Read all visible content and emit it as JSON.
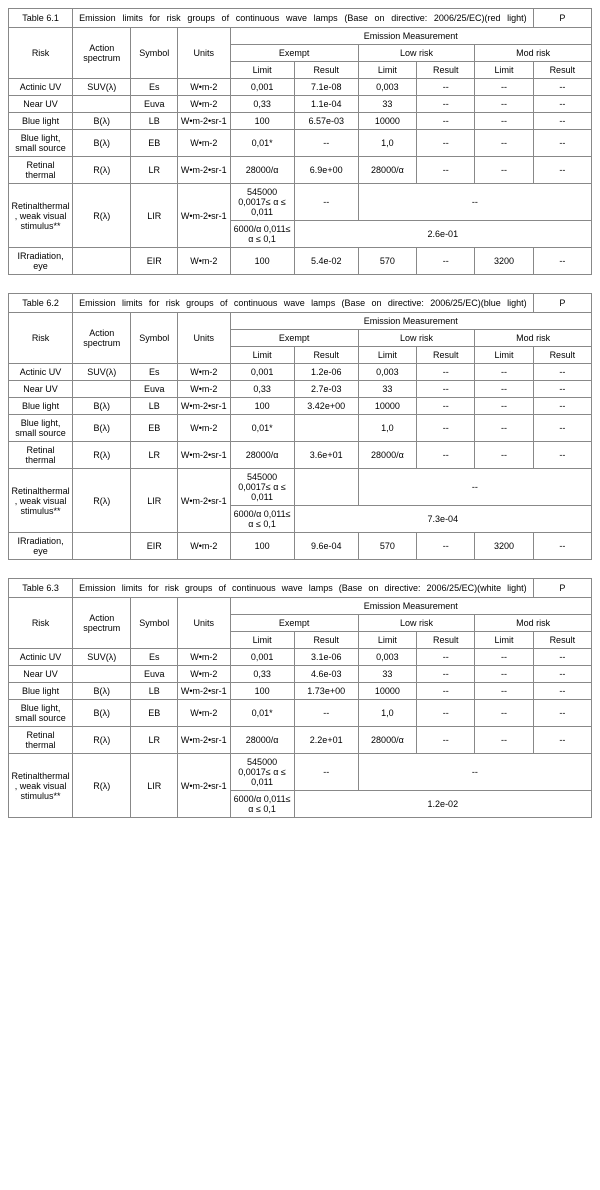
{
  "tables": [
    {
      "id": "Table 6.1",
      "title": "Emission limits for risk groups of continuous wave lamps (Base on directive: 2006/25/EC)(red light)",
      "p": "P",
      "header": {
        "risk": "Risk",
        "action_spectrum": "Action spectrum",
        "symbol": "Symbol",
        "units": "Units",
        "emission_measurement": "Emission Measurement",
        "exempt": "Exempt",
        "low_risk": "Low risk",
        "mod_risk": "Mod risk",
        "limit": "Limit",
        "result": "Result"
      },
      "rows": [
        {
          "risk": "Actinic UV",
          "spec": "SUV(λ)",
          "sym": "Es",
          "units": "W•m-2",
          "ex_l": "0,001",
          "ex_r": "7.1e-08",
          "lo_l": "0,003",
          "lo_r": "--",
          "mo_l": "--",
          "mo_r": "--"
        },
        {
          "risk": "Near UV",
          "spec": "",
          "sym": "Euva",
          "units": "W•m-2",
          "ex_l": "0,33",
          "ex_r": "1.1e-04",
          "lo_l": "33",
          "lo_r": "--",
          "mo_l": "--",
          "mo_r": "--"
        },
        {
          "risk": "Blue light",
          "spec": "B(λ)",
          "sym": "LB",
          "units": "W•m-2•sr-1",
          "ex_l": "100",
          "ex_r": "6.57e-03",
          "lo_l": "10000",
          "lo_r": "--",
          "mo_l": "--",
          "mo_r": "--"
        },
        {
          "risk": "Blue light, small source",
          "spec": "B(λ)",
          "sym": "EB",
          "units": "W•m-2",
          "ex_l": "0,01*",
          "ex_r": "--",
          "lo_l": "1,0",
          "lo_r": "--",
          "mo_l": "--",
          "mo_r": "--"
        },
        {
          "risk": "Retinal thermal",
          "spec": "R(λ)",
          "sym": "LR",
          "units": "W•m-2•sr-1",
          "ex_l": "28000/α",
          "ex_r": "6.9e+00",
          "lo_l": "28000/α",
          "lo_r": "--",
          "mo_l": "--",
          "mo_r": "--"
        }
      ],
      "retinal_weak": {
        "risk": "Retinalthermal, weak visual stimulus**",
        "spec": "R(λ)",
        "sym": "LIR",
        "units": "W•m-2•sr-1",
        "line1_limit": "545000 0,0017≤ α ≤ 0,011",
        "line1_result": "--",
        "line1_rest": "--",
        "line2_limit": "6000/α 0,011≤ α ≤ 0,1",
        "line2_rest": "2.6e-01"
      },
      "ir_row": {
        "risk": "IRradiation, eye",
        "spec": "",
        "sym": "EIR",
        "units": "W•m-2",
        "ex_l": "100",
        "ex_r": "5.4e-02",
        "lo_l": "570",
        "lo_r": "--",
        "mo_l": "3200",
        "mo_r": "--"
      }
    },
    {
      "id": "Table 6.2",
      "title": "Emission limits for risk groups of continuous wave lamps (Base on directive: 2006/25/EC)(blue light)",
      "p": "P",
      "header": {
        "risk": "Risk",
        "action_spectrum": "Action spectrum",
        "symbol": "Symbol",
        "units": "Units",
        "emission_measurement": "Emission Measurement",
        "exempt": "Exempt",
        "low_risk": "Low risk",
        "mod_risk": "Mod risk",
        "limit": "Limit",
        "result": "Result"
      },
      "rows": [
        {
          "risk": "Actinic UV",
          "spec": "SUV(λ)",
          "sym": "Es",
          "units": "W•m-2",
          "ex_l": "0,001",
          "ex_r": "1.2e-06",
          "lo_l": "0,003",
          "lo_r": "--",
          "mo_l": "--",
          "mo_r": "--"
        },
        {
          "risk": "Near UV",
          "spec": "",
          "sym": "Euva",
          "units": "W•m-2",
          "ex_l": "0,33",
          "ex_r": "2.7e-03",
          "lo_l": "33",
          "lo_r": "--",
          "mo_l": "--",
          "mo_r": "--"
        },
        {
          "risk": "Blue light",
          "spec": "B(λ)",
          "sym": "LB",
          "units": "W•m-2•sr-1",
          "ex_l": "100",
          "ex_r": "3.42e+00",
          "lo_l": "10000",
          "lo_r": "--",
          "mo_l": "--",
          "mo_r": "--"
        },
        {
          "risk": "Blue light, small source",
          "spec": "B(λ)",
          "sym": "EB",
          "units": "W•m-2",
          "ex_l": "0,01*",
          "ex_r": "",
          "lo_l": "1,0",
          "lo_r": "--",
          "mo_l": "--",
          "mo_r": "--"
        },
        {
          "risk": "Retinal thermal",
          "spec": "R(λ)",
          "sym": "LR",
          "units": "W•m-2•sr-1",
          "ex_l": "28000/α",
          "ex_r": "3.6e+01",
          "lo_l": "28000/α",
          "lo_r": "--",
          "mo_l": "--",
          "mo_r": "--"
        }
      ],
      "retinal_weak": {
        "risk": "Retinalthermal, weak visual stimulus**",
        "spec": "R(λ)",
        "sym": "LIR",
        "units": "W•m-2•sr-1",
        "line1_limit": "545000 0,0017≤ α ≤ 0,011",
        "line1_result": "",
        "line1_rest": "--",
        "line2_limit": "6000/α 0,011≤ α ≤ 0,1",
        "line2_rest": "7.3e-04"
      },
      "ir_row": {
        "risk": "IRradiation, eye",
        "spec": "",
        "sym": "EIR",
        "units": "W•m-2",
        "ex_l": "100",
        "ex_r": "9.6e-04",
        "lo_l": "570",
        "lo_r": "--",
        "mo_l": "3200",
        "mo_r": "--"
      }
    },
    {
      "id": "Table 6.3",
      "title": "Emission limits for risk groups of continuous wave lamps (Base on directive: 2006/25/EC)(white light)",
      "p": "P",
      "header": {
        "risk": "Risk",
        "action_spectrum": "Action spectrum",
        "symbol": "Symbol",
        "units": "Units",
        "emission_measurement": "Emission Measurement",
        "exempt": "Exempt",
        "low_risk": "Low risk",
        "mod_risk": "Mod risk",
        "limit": "Limit",
        "result": "Result"
      },
      "rows": [
        {
          "risk": "Actinic UV",
          "spec": "SUV(λ)",
          "sym": "Es",
          "units": "W•m-2",
          "ex_l": "0,001",
          "ex_r": "3.1e-06",
          "lo_l": "0,003",
          "lo_r": "--",
          "mo_l": "--",
          "mo_r": "--"
        },
        {
          "risk": "Near UV",
          "spec": "",
          "sym": "Euva",
          "units": "W•m-2",
          "ex_l": "0,33",
          "ex_r": "4.6e-03",
          "lo_l": "33",
          "lo_r": "--",
          "mo_l": "--",
          "mo_r": "--"
        },
        {
          "risk": "Blue light",
          "spec": "B(λ)",
          "sym": "LB",
          "units": "W•m-2•sr-1",
          "ex_l": "100",
          "ex_r": "1.73e+00",
          "lo_l": "10000",
          "lo_r": "--",
          "mo_l": "--",
          "mo_r": "--"
        },
        {
          "risk": "Blue light, small source",
          "spec": "B(λ)",
          "sym": "EB",
          "units": "W•m-2",
          "ex_l": "0,01*",
          "ex_r": "--",
          "lo_l": "1,0",
          "lo_r": "--",
          "mo_l": "--",
          "mo_r": "--"
        },
        {
          "risk": "Retinal thermal",
          "spec": "R(λ)",
          "sym": "LR",
          "units": "W•m-2•sr-1",
          "ex_l": "28000/α",
          "ex_r": "2.2e+01",
          "lo_l": "28000/α",
          "lo_r": "--",
          "mo_l": "--",
          "mo_r": "--"
        }
      ],
      "retinal_weak": {
        "risk": "Retinalthermal, weak visual stimulus**",
        "spec": "R(λ)",
        "sym": "LIR",
        "units": "W•m-2•sr-1",
        "line1_limit": "545000 0,0017≤ α ≤ 0,011",
        "line1_result": "--",
        "line1_rest": "--",
        "line2_limit": "6000/α 0,011≤ α ≤ 0,1",
        "line2_rest": "1.2e-02"
      },
      "ir_row": null
    }
  ],
  "col_widths": [
    "11%",
    "10%",
    "8%",
    "9%",
    "11%",
    "11%",
    "10%",
    "10%",
    "10%",
    "10%"
  ]
}
